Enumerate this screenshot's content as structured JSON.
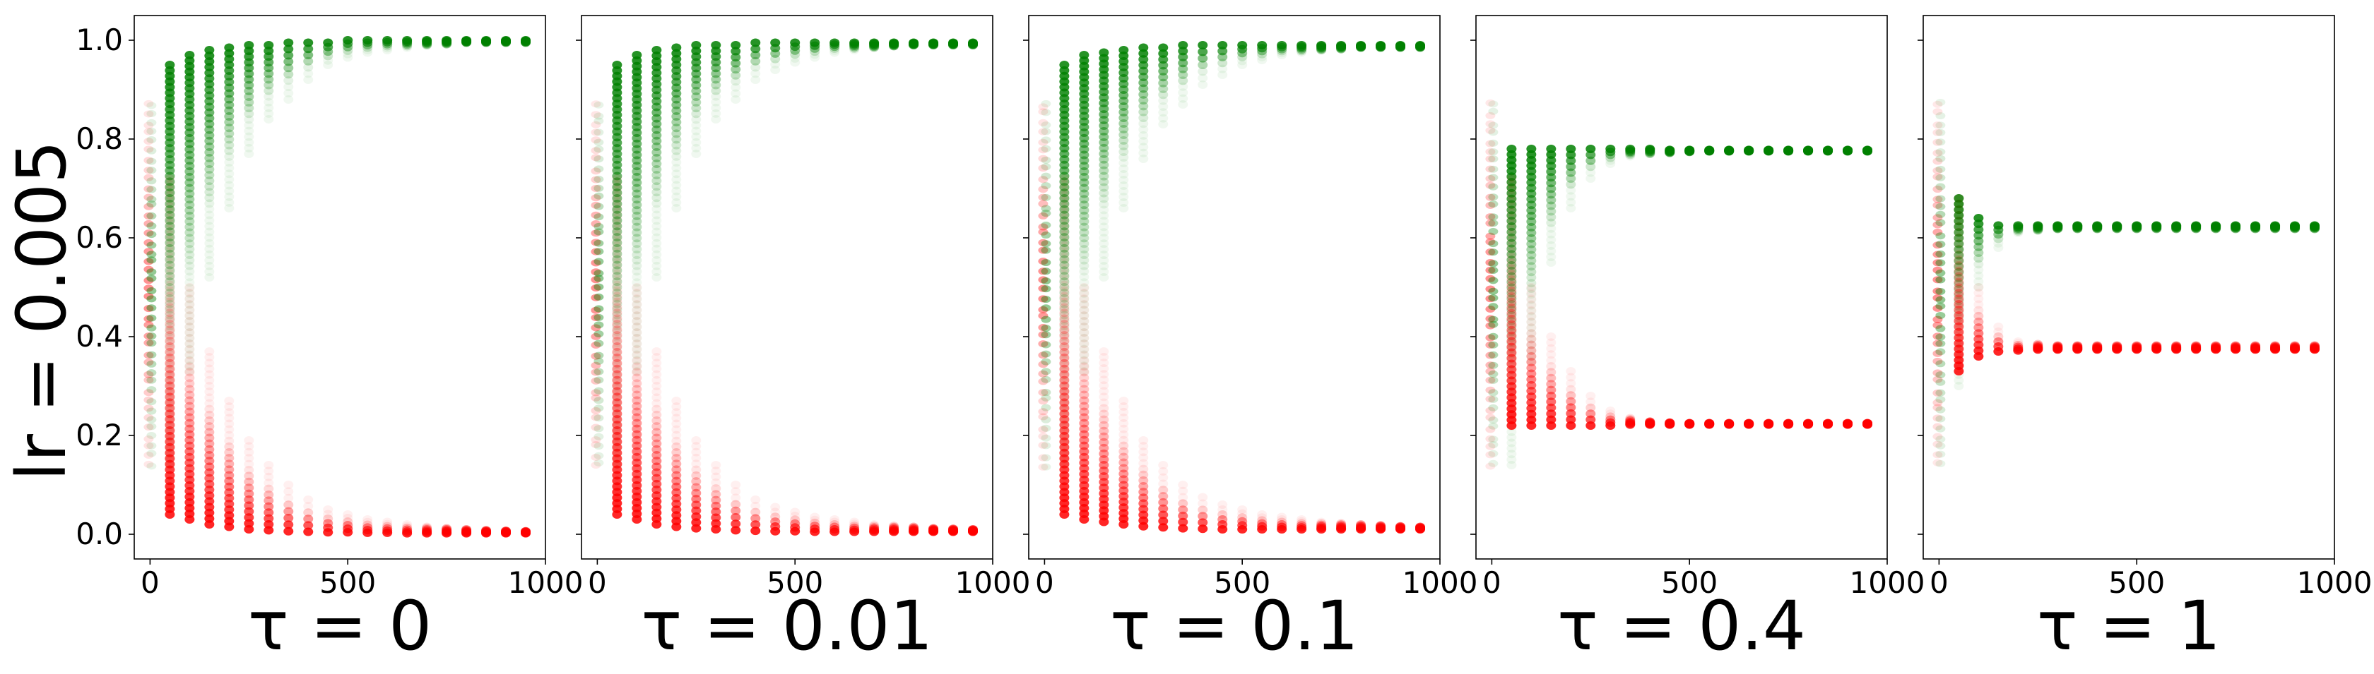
{
  "figure": {
    "ylabel": "lr = 0.005",
    "colors": {
      "upper": "#008000",
      "lower": "#ff0000"
    }
  },
  "chart_data": [
    {
      "type": "scatter",
      "xlabel": "τ = 0",
      "xlim": [
        -40,
        1000
      ],
      "ylim": [
        -0.05,
        1.05
      ],
      "xticks": [
        0,
        500,
        1000
      ],
      "yticks": [
        0.0,
        0.2,
        0.4,
        0.6,
        0.8,
        1.0
      ],
      "start": {
        "x": 0,
        "min": 0.14,
        "max": 0.87
      },
      "series": [
        {
          "color": "#008000",
          "start": 0.5,
          "final": 1.0,
          "decay": 0.0063,
          "x": [
            50,
            100,
            150,
            200,
            250,
            300,
            350,
            400,
            450,
            500,
            550,
            600,
            650,
            700,
            750,
            800,
            850,
            900,
            950
          ],
          "top": [
            0.95,
            0.97,
            0.98,
            0.985,
            0.99,
            0.99,
            0.995,
            0.995,
            0.995,
            1.0,
            1.0,
            1.0,
            1.0,
            1.0,
            1.0,
            1.0,
            1.0,
            1.0,
            1.0
          ],
          "bottom": [
            0.14,
            0.33,
            0.52,
            0.66,
            0.77,
            0.84,
            0.88,
            0.92,
            0.95,
            0.965,
            0.975,
            0.98,
            0.985,
            0.99,
            0.992,
            0.995,
            0.995,
            0.995,
            0.995
          ]
        },
        {
          "color": "#ff0000",
          "start": 0.5,
          "final": 0.0,
          "decay": 0.0063,
          "x": [
            50,
            100,
            150,
            200,
            250,
            300,
            350,
            400,
            450,
            500,
            550,
            600,
            650,
            700,
            750,
            800,
            850,
            900,
            950
          ],
          "top": [
            0.72,
            0.5,
            0.37,
            0.27,
            0.19,
            0.14,
            0.1,
            0.07,
            0.05,
            0.04,
            0.03,
            0.025,
            0.02,
            0.015,
            0.012,
            0.01,
            0.008,
            0.007,
            0.006
          ],
          "bottom": [
            0.04,
            0.03,
            0.02,
            0.015,
            0.01,
            0.008,
            0.006,
            0.005,
            0.004,
            0.004,
            0.003,
            0.003,
            0.002,
            0.002,
            0.002,
            0.002,
            0.002,
            0.002,
            0.002
          ]
        }
      ]
    },
    {
      "type": "scatter",
      "xlabel": "τ = 0.01",
      "xlim": [
        -40,
        1000
      ],
      "ylim": [
        -0.05,
        1.05
      ],
      "xticks": [
        0,
        500,
        1000
      ],
      "yticks": [
        0.0,
        0.2,
        0.4,
        0.6,
        0.8,
        1.0
      ],
      "start": {
        "x": 0,
        "min": 0.14,
        "max": 0.87
      },
      "series": [
        {
          "color": "#008000",
          "start": 0.5,
          "final": 0.995,
          "x": [
            50,
            100,
            150,
            200,
            250,
            300,
            350,
            400,
            450,
            500,
            550,
            600,
            650,
            700,
            750,
            800,
            850,
            900,
            950
          ],
          "top": [
            0.95,
            0.97,
            0.98,
            0.985,
            0.99,
            0.99,
            0.99,
            0.995,
            0.995,
            0.995,
            0.995,
            0.995,
            0.995,
            0.995,
            0.995,
            0.995,
            0.995,
            0.995,
            0.995
          ],
          "bottom": [
            0.14,
            0.33,
            0.52,
            0.66,
            0.77,
            0.84,
            0.88,
            0.92,
            0.94,
            0.955,
            0.965,
            0.975,
            0.98,
            0.985,
            0.988,
            0.99,
            0.99,
            0.99,
            0.99
          ]
        },
        {
          "color": "#ff0000",
          "start": 0.5,
          "final": 0.005,
          "x": [
            50,
            100,
            150,
            200,
            250,
            300,
            350,
            400,
            450,
            500,
            550,
            600,
            650,
            700,
            750,
            800,
            850,
            900,
            950
          ],
          "top": [
            0.72,
            0.5,
            0.37,
            0.27,
            0.19,
            0.14,
            0.1,
            0.07,
            0.055,
            0.045,
            0.035,
            0.03,
            0.025,
            0.02,
            0.017,
            0.015,
            0.012,
            0.011,
            0.01
          ],
          "bottom": [
            0.04,
            0.03,
            0.02,
            0.015,
            0.012,
            0.01,
            0.008,
            0.007,
            0.006,
            0.006,
            0.005,
            0.005,
            0.005,
            0.005,
            0.005,
            0.005,
            0.005,
            0.005,
            0.005
          ]
        }
      ]
    },
    {
      "type": "scatter",
      "xlabel": "τ = 0.1",
      "xlim": [
        -40,
        1000
      ],
      "ylim": [
        -0.05,
        1.05
      ],
      "xticks": [
        0,
        500,
        1000
      ],
      "yticks": [
        0.0,
        0.2,
        0.4,
        0.6,
        0.8,
        1.0
      ],
      "start": {
        "x": 0,
        "min": 0.14,
        "max": 0.87
      },
      "series": [
        {
          "color": "#008000",
          "start": 0.5,
          "final": 0.99,
          "x": [
            50,
            100,
            150,
            200,
            250,
            300,
            350,
            400,
            450,
            500,
            550,
            600,
            650,
            700,
            750,
            800,
            850,
            900,
            950
          ],
          "top": [
            0.95,
            0.97,
            0.975,
            0.98,
            0.985,
            0.985,
            0.99,
            0.99,
            0.99,
            0.99,
            0.99,
            0.99,
            0.99,
            0.99,
            0.99,
            0.99,
            0.99,
            0.99,
            0.99
          ],
          "bottom": [
            0.14,
            0.33,
            0.52,
            0.66,
            0.76,
            0.83,
            0.87,
            0.91,
            0.93,
            0.95,
            0.96,
            0.97,
            0.975,
            0.98,
            0.982,
            0.985,
            0.985,
            0.985,
            0.985
          ]
        },
        {
          "color": "#ff0000",
          "start": 0.5,
          "final": 0.01,
          "x": [
            50,
            100,
            150,
            200,
            250,
            300,
            350,
            400,
            450,
            500,
            550,
            600,
            650,
            700,
            750,
            800,
            850,
            900,
            950
          ],
          "top": [
            0.72,
            0.5,
            0.37,
            0.27,
            0.19,
            0.14,
            0.1,
            0.075,
            0.06,
            0.05,
            0.04,
            0.035,
            0.03,
            0.025,
            0.022,
            0.02,
            0.018,
            0.016,
            0.015
          ],
          "bottom": [
            0.04,
            0.03,
            0.025,
            0.02,
            0.016,
            0.014,
            0.012,
            0.011,
            0.01,
            0.01,
            0.01,
            0.01,
            0.01,
            0.01,
            0.01,
            0.01,
            0.01,
            0.01,
            0.01
          ]
        }
      ]
    },
    {
      "type": "scatter",
      "xlabel": "τ = 0.4",
      "xlim": [
        -40,
        1000
      ],
      "ylim": [
        -0.05,
        1.05
      ],
      "xticks": [
        0,
        500,
        1000
      ],
      "yticks": [
        0.0,
        0.2,
        0.4,
        0.6,
        0.8,
        1.0
      ],
      "start": {
        "x": 0,
        "min": 0.14,
        "max": 0.87
      },
      "series": [
        {
          "color": "#008000",
          "start": 0.5,
          "final": 0.776,
          "x": [
            50,
            100,
            150,
            200,
            250,
            300,
            350,
            400,
            450,
            500,
            550,
            600,
            650,
            700,
            750,
            800,
            850,
            900,
            950
          ],
          "top": [
            0.78,
            0.78,
            0.78,
            0.78,
            0.78,
            0.78,
            0.78,
            0.78,
            0.778,
            0.778,
            0.778,
            0.778,
            0.778,
            0.778,
            0.778,
            0.778,
            0.778,
            0.778,
            0.778
          ],
          "bottom": [
            0.14,
            0.35,
            0.55,
            0.66,
            0.72,
            0.75,
            0.765,
            0.77,
            0.772,
            0.774,
            0.775,
            0.775,
            0.775,
            0.775,
            0.775,
            0.775,
            0.775,
            0.775,
            0.775
          ]
        },
        {
          "color": "#ff0000",
          "start": 0.5,
          "final": 0.224,
          "x": [
            50,
            100,
            150,
            200,
            250,
            300,
            350,
            400,
            450,
            500,
            550,
            600,
            650,
            700,
            750,
            800,
            850,
            900,
            950
          ],
          "top": [
            0.72,
            0.5,
            0.4,
            0.33,
            0.28,
            0.25,
            0.235,
            0.228,
            0.226,
            0.225,
            0.225,
            0.225,
            0.225,
            0.225,
            0.225,
            0.225,
            0.225,
            0.225,
            0.225
          ],
          "bottom": [
            0.22,
            0.22,
            0.22,
            0.22,
            0.22,
            0.22,
            0.222,
            0.222,
            0.222,
            0.222,
            0.222,
            0.222,
            0.222,
            0.222,
            0.222,
            0.222,
            0.222,
            0.222,
            0.222
          ]
        }
      ]
    },
    {
      "type": "scatter",
      "xlabel": "τ = 1",
      "xlim": [
        -40,
        1000
      ],
      "ylim": [
        -0.05,
        1.05
      ],
      "xticks": [
        0,
        500,
        1000
      ],
      "yticks": [
        0.0,
        0.2,
        0.4,
        0.6,
        0.8,
        1.0
      ],
      "start": {
        "x": 0,
        "min": 0.14,
        "max": 0.87
      },
      "series": [
        {
          "color": "#008000",
          "start": 0.5,
          "final": 0.622,
          "x": [
            50,
            100,
            150,
            200,
            250,
            300,
            350,
            400,
            450,
            500,
            550,
            600,
            650,
            700,
            750,
            800,
            850,
            900,
            950
          ],
          "top": [
            0.68,
            0.64,
            0.625,
            0.625,
            0.625,
            0.625,
            0.625,
            0.625,
            0.625,
            0.625,
            0.625,
            0.625,
            0.625,
            0.625,
            0.625,
            0.625,
            0.625,
            0.625,
            0.625
          ],
          "bottom": [
            0.3,
            0.5,
            0.58,
            0.61,
            0.615,
            0.618,
            0.618,
            0.618,
            0.618,
            0.618,
            0.618,
            0.618,
            0.618,
            0.618,
            0.618,
            0.618,
            0.618,
            0.618,
            0.618
          ]
        },
        {
          "color": "#ff0000",
          "start": 0.5,
          "final": 0.378,
          "x": [
            50,
            100,
            150,
            200,
            250,
            300,
            350,
            400,
            450,
            500,
            550,
            600,
            650,
            700,
            750,
            800,
            850,
            900,
            950
          ],
          "top": [
            0.68,
            0.5,
            0.42,
            0.39,
            0.385,
            0.382,
            0.382,
            0.382,
            0.382,
            0.382,
            0.382,
            0.382,
            0.382,
            0.382,
            0.382,
            0.382,
            0.382,
            0.382,
            0.382
          ],
          "bottom": [
            0.33,
            0.36,
            0.37,
            0.372,
            0.374,
            0.374,
            0.374,
            0.374,
            0.374,
            0.374,
            0.374,
            0.374,
            0.374,
            0.374,
            0.374,
            0.374,
            0.374,
            0.374,
            0.374
          ]
        }
      ]
    }
  ]
}
